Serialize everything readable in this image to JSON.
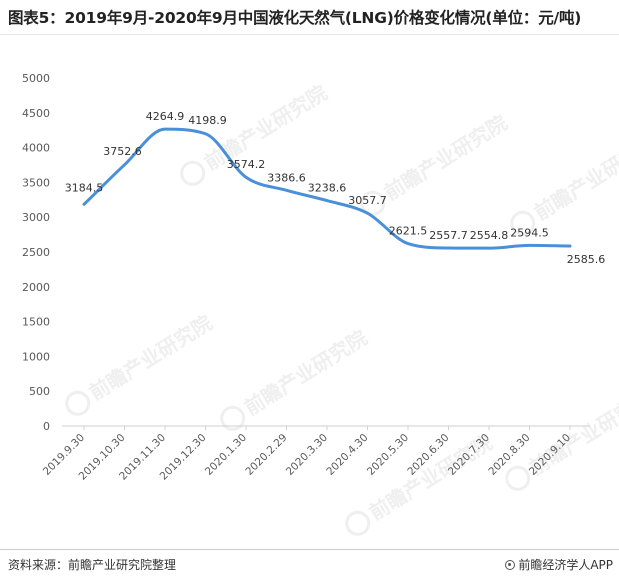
{
  "title": "图表5：2019年9月-2020年9月中国液化天然气(LNG)价格变化情况(单位：元/吨)",
  "footer": {
    "source": "资料来源：前瞻产业研究院整理",
    "brand": "前瞻经济学人APP"
  },
  "watermark": {
    "text": "前瞻产业研究院",
    "icon": "qianzhan-logo-icon"
  },
  "chart_data": {
    "type": "line",
    "title": "图表5：2019年9月-2020年9月中国液化天然气(LNG)价格变化情况(单位：元/吨)",
    "xlabel": "",
    "ylabel": "",
    "categories": [
      "2019.9.30",
      "2019.10.30",
      "2019.11.30",
      "2019.12.30",
      "2020.1.30",
      "2020.2.29",
      "2020.3.30",
      "2020.4.30",
      "2020.5.30",
      "2020.6.30",
      "2020.7.30",
      "2020.8.30",
      "2020.9.10"
    ],
    "series": [
      {
        "values": [
          3184.5,
          3752.6,
          4264.9,
          4198.9,
          3574.2,
          3386.6,
          3238.6,
          3057.7,
          2621.5,
          2557.7,
          2554.8,
          2594.5,
          2585.6
        ],
        "labels": [
          "3184.5",
          "3752.6",
          "4264.9",
          "4198.9",
          "3574.2",
          "3386.6",
          "3238.6",
          "3057.7",
          "2621.5",
          "2557.7",
          "2554.8",
          "2594.5",
          "2585.6"
        ]
      }
    ],
    "ylim": [
      0,
      5000
    ],
    "yticks": [
      "0",
      "500",
      "1000",
      "1500",
      "2000",
      "2500",
      "3000",
      "3500",
      "4000",
      "4500",
      "5000"
    ],
    "grid": false,
    "legend": "none",
    "line_color": "#4a90d9",
    "smooth": true
  }
}
